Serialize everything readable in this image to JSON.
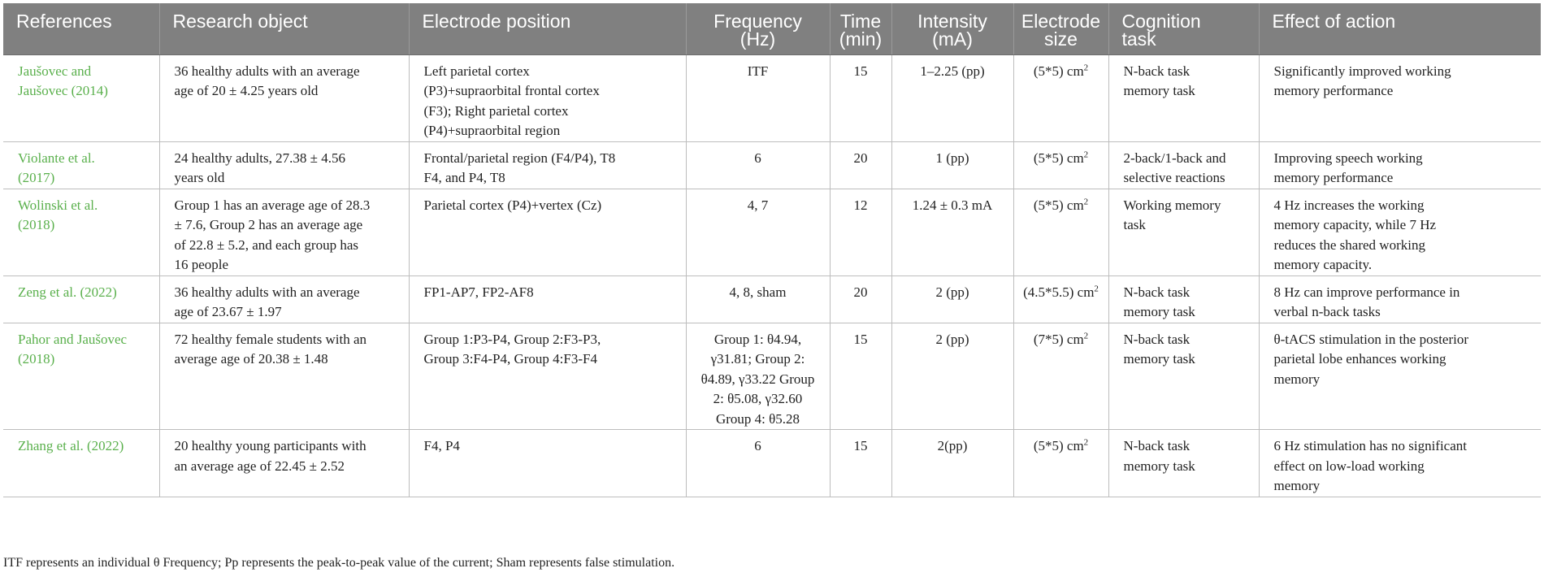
{
  "headers": [
    "References",
    "Research object",
    "Electrode position",
    "Frequency\n(Hz)",
    "Time\n(min)",
    "Intensity\n(mA)",
    "Electrode\nsize",
    "Cognition\ntask",
    "Effect of action"
  ],
  "rows": [
    {
      "ref": "Jaušovec and\nJaušovec (2014)",
      "object": "36 healthy adults with an average\nage of 20 ± 4.25 years old",
      "position": "Left parietal cortex\n(P3)+supraorbital frontal cortex\n(F3); Right parietal cortex\n(P4)+supraorbital region",
      "frequency": "ITF",
      "time": "15",
      "intensity": "1–2.25 (pp)",
      "size": "(5*5) cm",
      "size_unit_exp": "2",
      "task": "N-back task\nmemory task",
      "effect": "Significantly improved working\nmemory performance"
    },
    {
      "ref": "Violante et al.\n(2017)",
      "object": "24 healthy adults, 27.38 ± 4.56\nyears old",
      "position": "Frontal/parietal region (F4/P4), T8\nF4, and P4, T8",
      "frequency": "6",
      "time": "20",
      "intensity": "1 (pp)",
      "size": "(5*5) cm",
      "size_unit_exp": "2",
      "task": "2-back/1-back and\nselective reactions",
      "effect": "Improving speech working\nmemory performance"
    },
    {
      "ref": "Wolinski et al.\n(2018)",
      "object": "Group 1 has an average age of 28.3\n± 7.6, Group 2 has an average age\nof 22.8 ± 5.2, and each group has\n16 people",
      "position": "Parietal cortex (P4)+vertex (Cz)",
      "frequency": "4, 7",
      "time": "12",
      "intensity": "1.24 ± 0.3 mA",
      "size": "(5*5) cm",
      "size_unit_exp": "2",
      "task": "Working memory\ntask",
      "effect": "4 Hz increases the working\nmemory capacity, while 7 Hz\nreduces the shared working\nmemory capacity."
    },
    {
      "ref": "Zeng et al. (2022)",
      "object": "36 healthy adults with an average\nage of 23.67 ± 1.97",
      "position": "FP1-AP7, FP2-AF8",
      "frequency": "4, 8, sham",
      "time": "20",
      "intensity": "2 (pp)",
      "size": "(4.5*5.5) cm",
      "size_unit_exp": "2",
      "task": "N-back task\nmemory task",
      "effect": "8 Hz can improve performance in\nverbal n-back tasks"
    },
    {
      "ref": "Pahor and Jaušovec\n(2018)",
      "object": "72 healthy female students with an\naverage age of 20.38 ± 1.48",
      "position": "Group 1:P3-P4, Group 2:F3-P3,\nGroup 3:F4-P4, Group 4:F3-F4",
      "frequency": "Group 1: θ4.94,\nγ31.81; Group 2:\nθ4.89, γ33.22 Group\n2: θ5.08, γ32.60\nGroup 4: θ5.28",
      "time": "15",
      "intensity": "2 (pp)",
      "size": "(7*5) cm",
      "size_unit_exp": "2",
      "task": "N-back task\nmemory task",
      "effect": "θ-tACS stimulation in the posterior\nparietal lobe enhances working\nmemory"
    },
    {
      "ref": "Zhang et al. (2022)",
      "object": "20 healthy young participants with\nan average age of 22.45 ± 2.52",
      "position": "F4, P4",
      "frequency": "6",
      "time": "15",
      "intensity": "2(pp)",
      "size": "(5*5) cm",
      "size_unit_exp": "2",
      "task": "N-back task\nmemory task",
      "effect": "6 Hz stimulation has no significant\neffect on low-load working\nmemory"
    }
  ],
  "footnote": "ITF represents an individual θ Frequency; Pp represents the peak-to-peak value of the current; Sham represents false stimulation.",
  "colors": {
    "header_bg": "#808080",
    "header_text": "#ffffff",
    "reference_link": "#5ab04c",
    "body_text": "#222222",
    "grid_line": "#bdbdbd"
  }
}
